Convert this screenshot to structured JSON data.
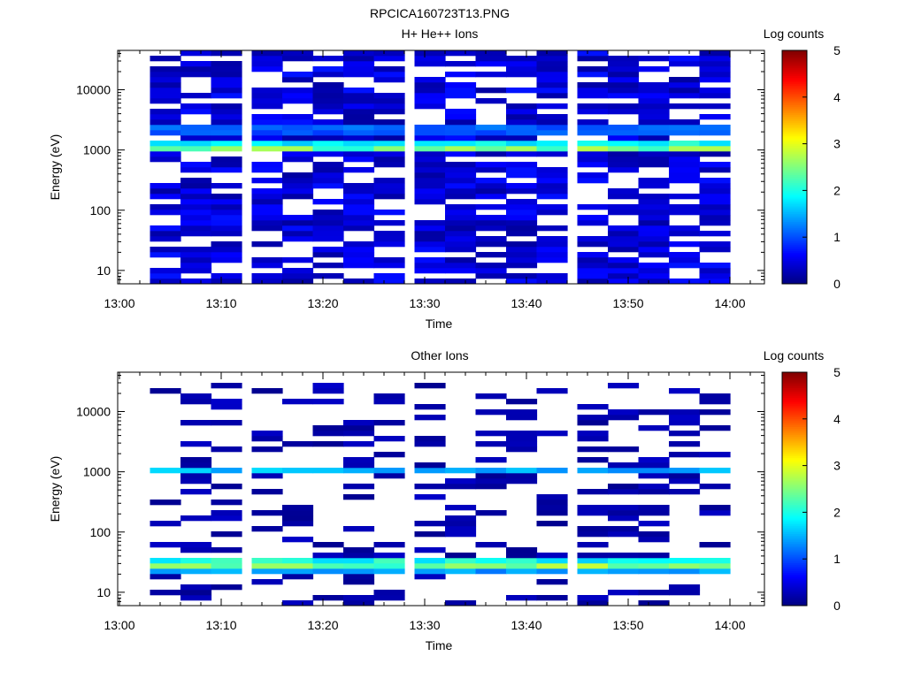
{
  "figure": {
    "title": "RPCICA160723T13.PNG"
  },
  "chart_data": [
    {
      "type": "heatmap",
      "title": "H+ He++ Ions",
      "xlabel": "Time",
      "ylabel": "Energy (eV)",
      "x_ticks": [
        "13:00",
        "13:10",
        "13:20",
        "13:30",
        "13:40",
        "13:50",
        "14:00"
      ],
      "y_ticks": [
        "10",
        "100",
        "1000",
        "10000"
      ],
      "y_scale": "log",
      "ylim": [
        6,
        45000
      ],
      "xlim": [
        "13:00",
        "14:04"
      ],
      "colorbar": {
        "label": "Log counts",
        "ticks": [
          "0",
          "1",
          "2",
          "3",
          "4",
          "5"
        ],
        "range": [
          0,
          5
        ],
        "colormap": "jet"
      },
      "time_bins": [
        "13:03",
        "13:06",
        "13:09",
        "13:13",
        "13:16",
        "13:19",
        "13:22",
        "13:25",
        "13:29",
        "13:32",
        "13:35",
        "13:38",
        "13:41",
        "13:45",
        "13:48",
        "13:51",
        "13:54",
        "13:57"
      ],
      "features": [
        {
          "description": "band",
          "energy_low_eV": 900,
          "energy_high_eV": 1400,
          "peak_log_counts": 3.0
        },
        {
          "description": "band",
          "energy_low_eV": 1800,
          "energy_high_eV": 2600,
          "peak_log_counts": 1.6
        },
        {
          "description": "background",
          "energy_low_eV": 6,
          "energy_high_eV": 45000,
          "typical_log_counts": 0.4
        }
      ]
    },
    {
      "type": "heatmap",
      "title": "Other Ions",
      "xlabel": "Time",
      "ylabel": "Energy (eV)",
      "x_ticks": [
        "13:00",
        "13:10",
        "13:20",
        "13:30",
        "13:40",
        "13:50",
        "14:00"
      ],
      "y_ticks": [
        "10",
        "100",
        "1000",
        "10000"
      ],
      "y_scale": "log",
      "ylim": [
        6,
        45000
      ],
      "xlim": [
        "13:00",
        "14:04"
      ],
      "colorbar": {
        "label": "Log counts",
        "ticks": [
          "0",
          "1",
          "2",
          "3",
          "4",
          "5"
        ],
        "range": [
          0,
          5
        ],
        "colormap": "jet"
      },
      "time_bins": [
        "13:03",
        "13:06",
        "13:09",
        "13:13",
        "13:16",
        "13:19",
        "13:22",
        "13:25",
        "13:29",
        "13:32",
        "13:35",
        "13:38",
        "13:41",
        "13:45",
        "13:48",
        "13:51",
        "13:54",
        "13:57"
      ],
      "features": [
        {
          "description": "band",
          "energy_low_eV": 22,
          "energy_high_eV": 38,
          "peak_log_counts": 2.9
        },
        {
          "description": "band",
          "energy_low_eV": 950,
          "energy_high_eV": 1250,
          "peak_log_counts": 1.8
        },
        {
          "description": "background",
          "energy_low_eV": 6,
          "energy_high_eV": 30000,
          "typical_log_counts": 0.2
        }
      ]
    }
  ]
}
